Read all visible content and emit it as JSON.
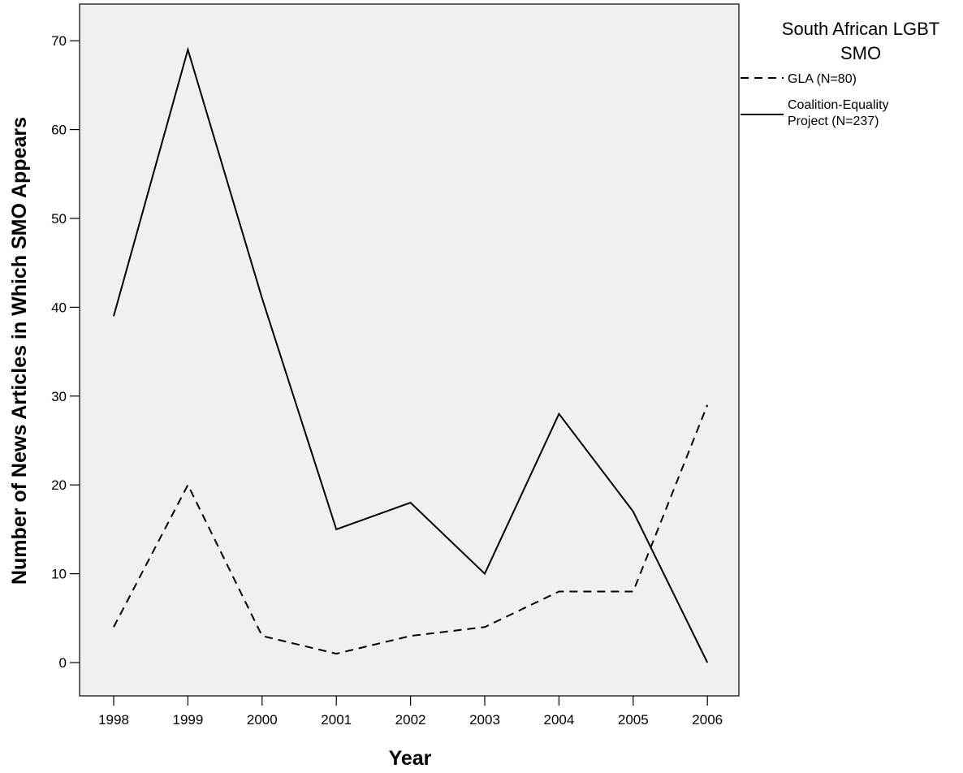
{
  "chart_data": {
    "type": "line",
    "xlabel": "Year",
    "ylabel": "Number of News Articles in Which SMO Appears",
    "categories": [
      "1998",
      "1999",
      "2000",
      "2001",
      "2002",
      "2003",
      "2004",
      "2005",
      "2006"
    ],
    "ylim": [
      0,
      70
    ],
    "yticks": [
      0,
      10,
      20,
      30,
      40,
      50,
      60,
      70
    ],
    "grid": false,
    "legend": {
      "title_lines": [
        "South African LGBT",
        "SMO"
      ],
      "placement": "right"
    },
    "series": [
      {
        "name": "GLA (N=80)",
        "style": "dashed",
        "color": "#000000",
        "values": [
          4,
          20,
          3,
          1,
          3,
          4,
          8,
          8,
          29
        ]
      },
      {
        "name": "Coalition-Equality Project (N=237)",
        "label_lines": [
          "Coalition-Equality",
          "Project (N=237)"
        ],
        "style": "solid",
        "color": "#000000",
        "values": [
          39,
          69,
          41,
          15,
          18,
          10,
          28,
          17,
          0
        ]
      }
    ],
    "plot_background": "#f0f0f0"
  }
}
